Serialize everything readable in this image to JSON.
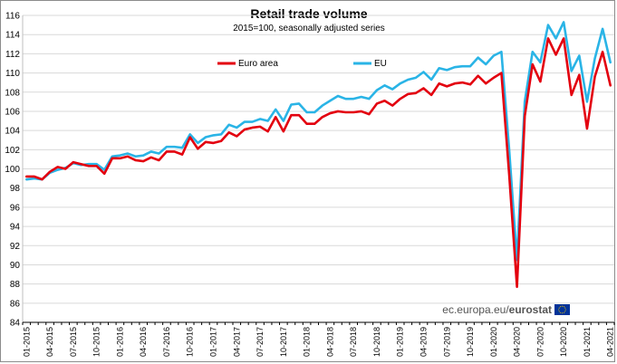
{
  "chart_data": {
    "type": "line",
    "title": "Retail trade volume",
    "subtitle": "2015=100, seasonally adjusted series",
    "ylim": [
      84,
      116
    ],
    "yticks": [
      84,
      86,
      88,
      90,
      92,
      94,
      96,
      98,
      100,
      102,
      104,
      106,
      108,
      110,
      112,
      114,
      116
    ],
    "xtick_labels": [
      "01-2015",
      "04-2015",
      "07-2015",
      "10-2015",
      "01-2016",
      "04-2016",
      "07-2016",
      "10-2016",
      "01-2017",
      "04-2017",
      "07-2017",
      "10-2017",
      "01-2018",
      "04-2018",
      "07-2018",
      "10-2018",
      "01-2019",
      "04-2019",
      "07-2019",
      "10-2019",
      "01-2020",
      "04-2020",
      "07-2020",
      "10-2020",
      "01-2021",
      "04-2021"
    ],
    "legend_position": "top-left",
    "grid": true,
    "series": [
      {
        "name": "Euro area",
        "color": "#e3000f",
        "values": [
          99.2,
          99.2,
          98.9,
          99.7,
          100.2,
          100.0,
          100.7,
          100.5,
          100.3,
          100.3,
          99.5,
          101.1,
          101.1,
          101.3,
          100.9,
          100.8,
          101.2,
          100.9,
          101.8,
          101.8,
          101.5,
          103.3,
          102.1,
          102.8,
          102.7,
          102.9,
          103.8,
          103.4,
          104.1,
          104.3,
          104.4,
          103.9,
          105.4,
          103.9,
          105.6,
          105.6,
          104.7,
          104.7,
          105.4,
          105.8,
          106.0,
          105.9,
          105.9,
          106.0,
          105.7,
          106.8,
          107.1,
          106.6,
          107.3,
          107.8,
          107.9,
          108.4,
          107.7,
          108.9,
          108.6,
          108.9,
          109.0,
          108.8,
          109.7,
          108.9,
          109.5,
          110.0,
          99.4,
          87.7,
          105.5,
          110.9,
          109.1,
          113.6,
          111.9,
          113.6,
          107.7,
          109.8,
          104.2,
          109.6,
          112.2,
          108.7
        ]
      },
      {
        "name": "EU",
        "color": "#2ab4e6",
        "values": [
          98.9,
          99.0,
          98.9,
          99.6,
          99.9,
          100.1,
          100.6,
          100.4,
          100.5,
          100.5,
          99.9,
          101.3,
          101.4,
          101.6,
          101.3,
          101.4,
          101.8,
          101.6,
          102.3,
          102.3,
          102.2,
          103.6,
          102.7,
          103.3,
          103.5,
          103.6,
          104.6,
          104.3,
          104.9,
          104.9,
          105.2,
          105.0,
          106.2,
          105.0,
          106.7,
          106.8,
          105.9,
          105.9,
          106.6,
          107.1,
          107.6,
          107.3,
          107.3,
          107.5,
          107.3,
          108.2,
          108.7,
          108.3,
          108.9,
          109.3,
          109.5,
          110.1,
          109.3,
          110.5,
          110.3,
          110.6,
          110.7,
          110.7,
          111.6,
          110.9,
          111.8,
          112.2,
          102.0,
          90.5,
          107.0,
          112.2,
          111.1,
          115.0,
          113.6,
          115.3,
          110.2,
          111.8,
          107.0,
          111.5,
          114.6,
          111.1
        ]
      }
    ]
  },
  "source": {
    "prefix": "ec.europa.eu/",
    "brand": "eurostat",
    "flag_color": "#003399",
    "star_color": "#ffcc00"
  }
}
